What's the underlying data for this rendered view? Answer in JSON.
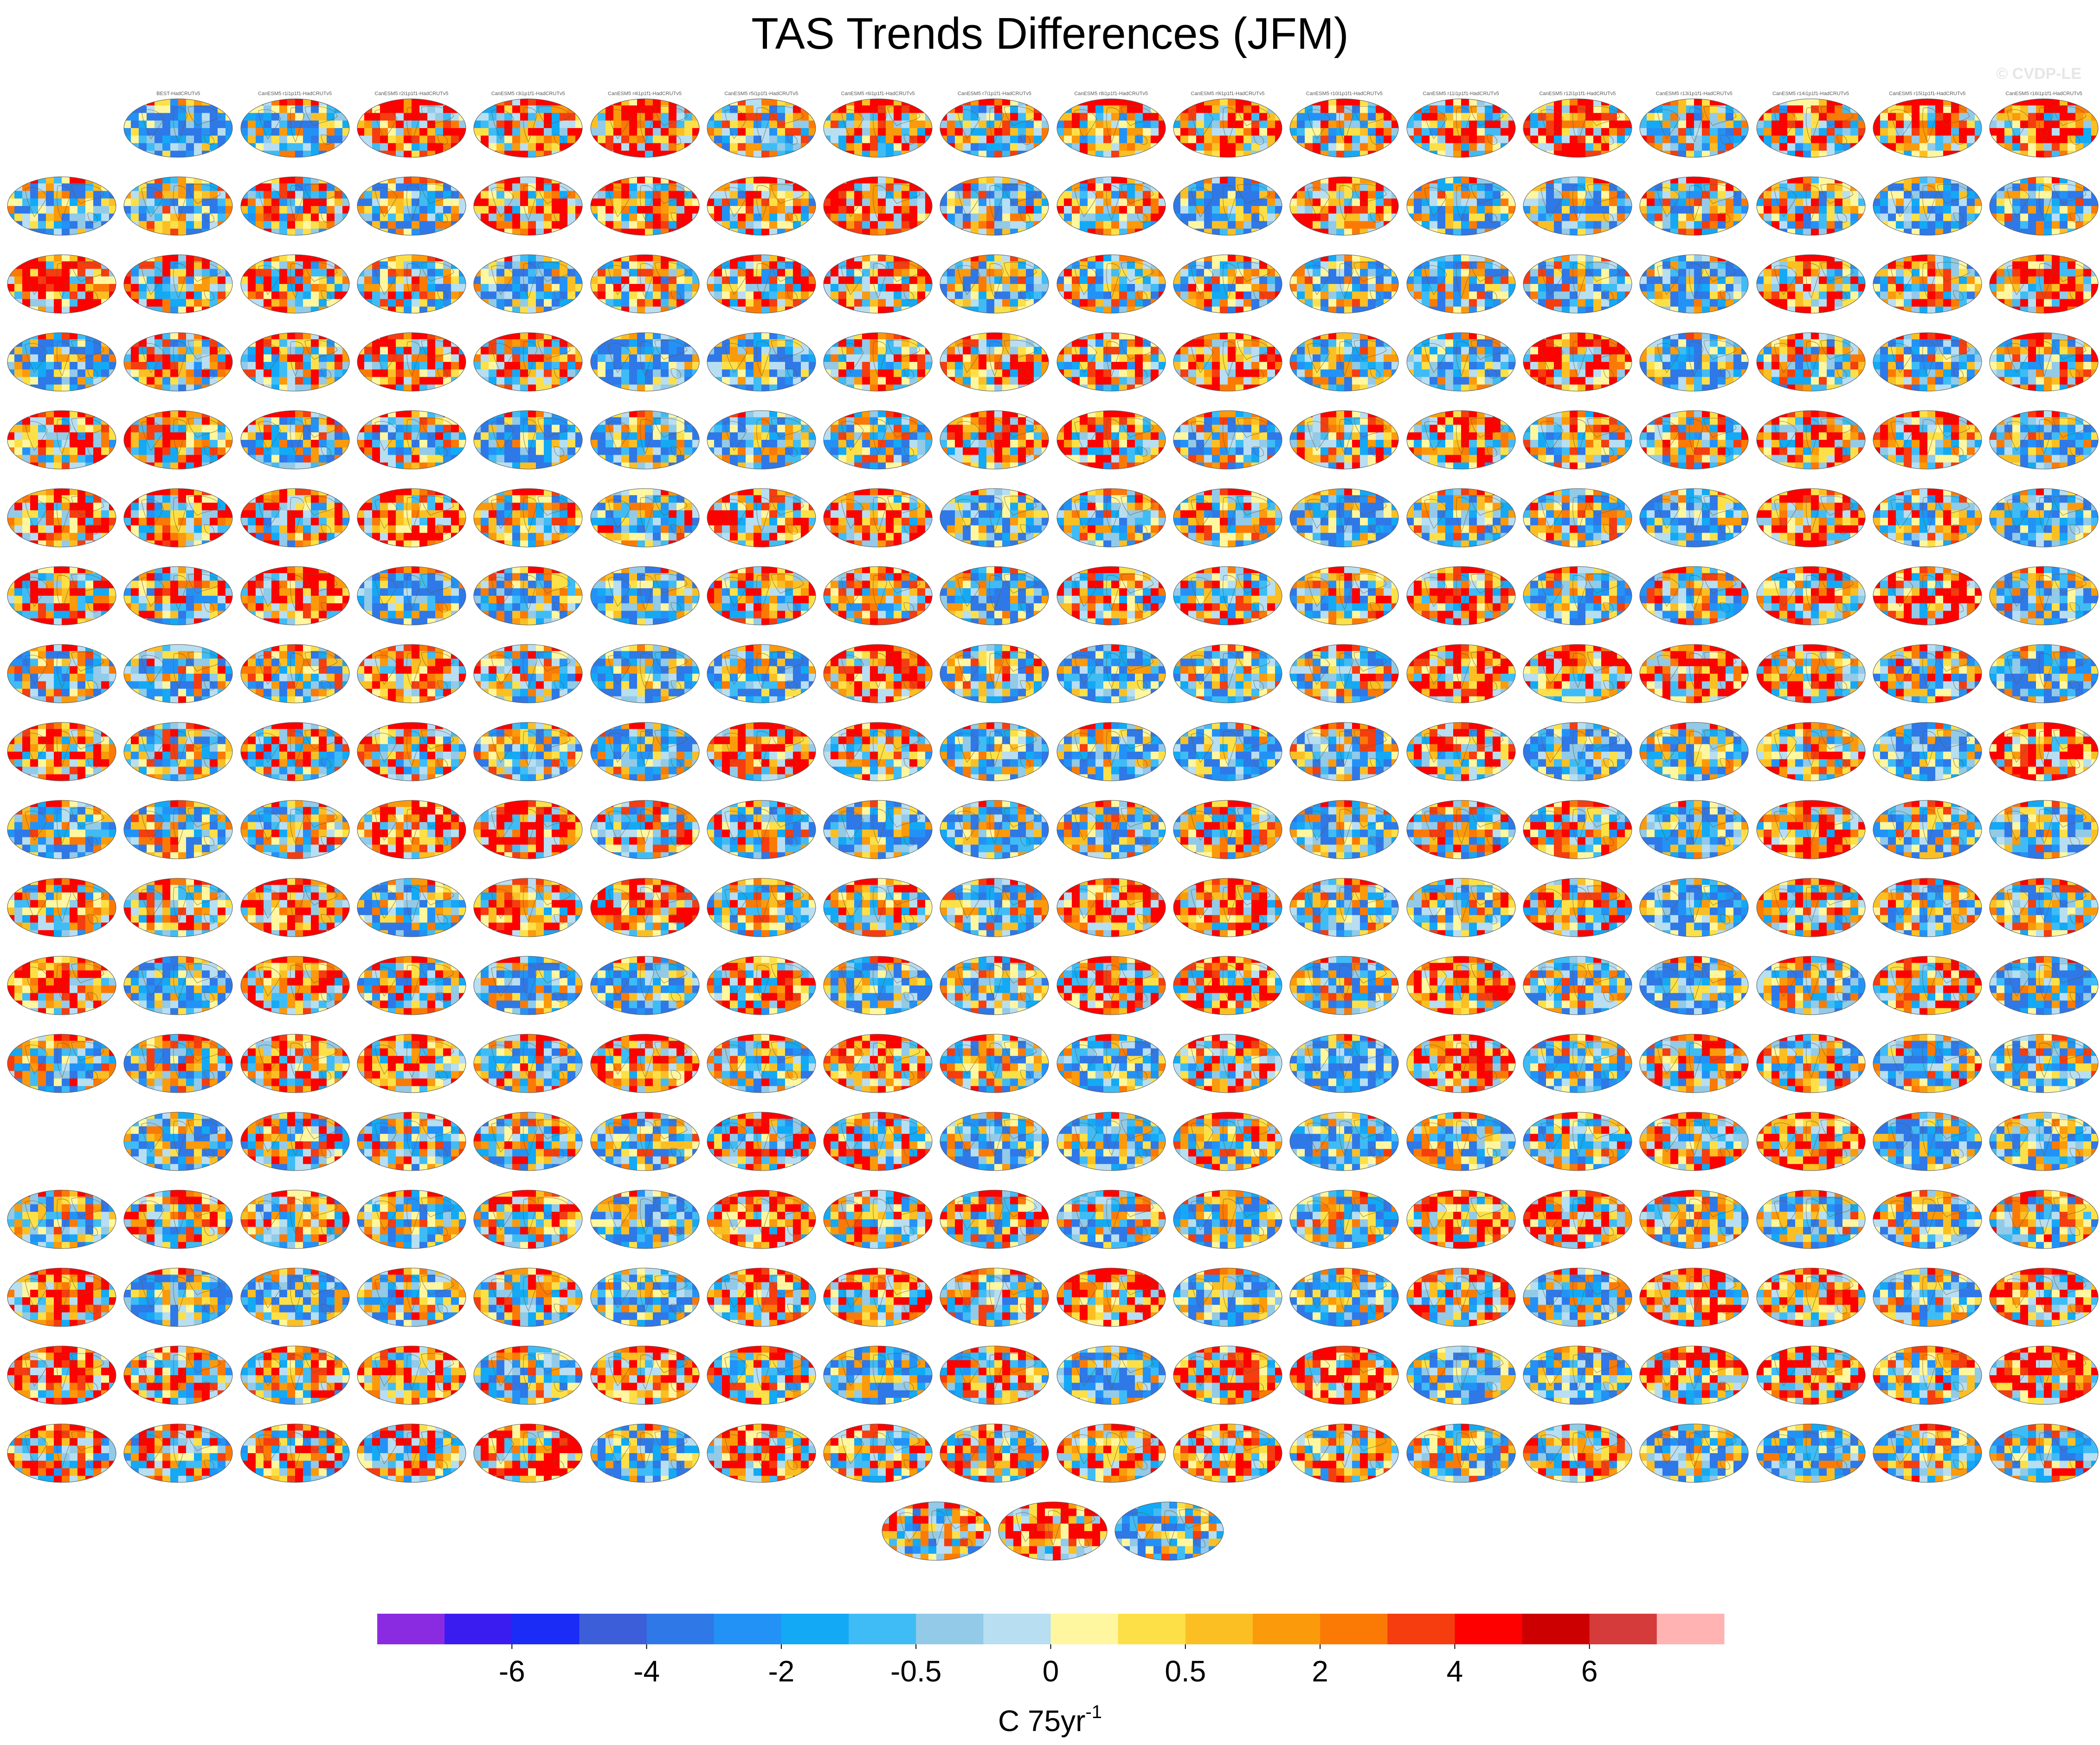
{
  "title": "TAS Trends Differences (JFM)",
  "watermark": "© CVDP-LE",
  "chart_data": {
    "type": "heatmap",
    "title": "TAS Trends Differences (JFM)",
    "panel_count": 330,
    "grid": {
      "columns": 18,
      "rows": 19
    },
    "colorbar": {
      "unit_main": "C 75yr",
      "unit_sup": "-1",
      "tick_labels": [
        "-6",
        "-4",
        "-2",
        "-0.5",
        "0",
        "0.5",
        "2",
        "4",
        "6"
      ],
      "colors": [
        "#8a2be2",
        "#3b1cf0",
        "#1a2cf5",
        "#3c5ed8",
        "#2f78e8",
        "#2392f7",
        "#13a9f5",
        "#3fbcf5",
        "#92cae8",
        "#b8def2",
        "#fff6a0",
        "#fde047",
        "#fbbf24",
        "#fb9a0b",
        "#fb7a06",
        "#f53d10",
        "#ff0000",
        "#cc0000",
        "#d63b3b",
        "#ffb3b3"
      ]
    },
    "panels": [
      {
        "label": "BEST-HadCRUTv5",
        "warm": 0.15
      },
      {
        "label": "CanESM5 r1i1p1f1-HadCRUTv5",
        "warm": 0.35
      },
      {
        "label": "CanESM5 r2i1p1f1-HadCRUTv5",
        "warm": 0.75
      },
      {
        "label": "CanESM5 r3i1p1f1-HadCRUTv5",
        "warm": 0.7
      },
      {
        "label": "CanESM5 r4i1p1f1-HadCRUTv5",
        "warm": 0.8
      },
      {
        "label": "CanESM5 r5i1p1f1-HadCRUTv5",
        "warm": 0.45
      },
      {
        "label": "CanESM5 r6i1p1f1-HadCRUTv5",
        "warm": 0.7
      },
      {
        "label": "CanESM5 r7i1p1f1-HadCRUTv5",
        "warm": 0.55
      },
      {
        "label": "CanESM5 r8i1p1f1-HadCRUTv5",
        "warm": 0.6
      },
      {
        "label": "CanESM5 r9i1p1f1-HadCRUTv5",
        "warm": 0.75
      },
      {
        "label": "CanESM5 r10i1p1f1-HadCRUTv5",
        "warm": 0.55
      },
      {
        "label": "CanESM5 r11i1p1f1-HadCRUTv5",
        "warm": 0.65
      },
      {
        "label": "CanESM5 r12i1p1f1-HadCRUTv5",
        "warm": 0.7
      },
      {
        "label": "CanESM5 r13i1p1f1-HadCRUTv5",
        "warm": 0.5
      },
      {
        "label": "CanESM5 r14i1p1f1-HadCRUTv5",
        "warm": 0.65
      },
      {
        "label": "CanESM5 r15i1p1f1-HadCRUTv5",
        "warm": 0.75
      },
      {
        "label": "CanESM5 r16i1p1f1-HadCRUTv5",
        "warm": 0.7
      }
    ]
  }
}
